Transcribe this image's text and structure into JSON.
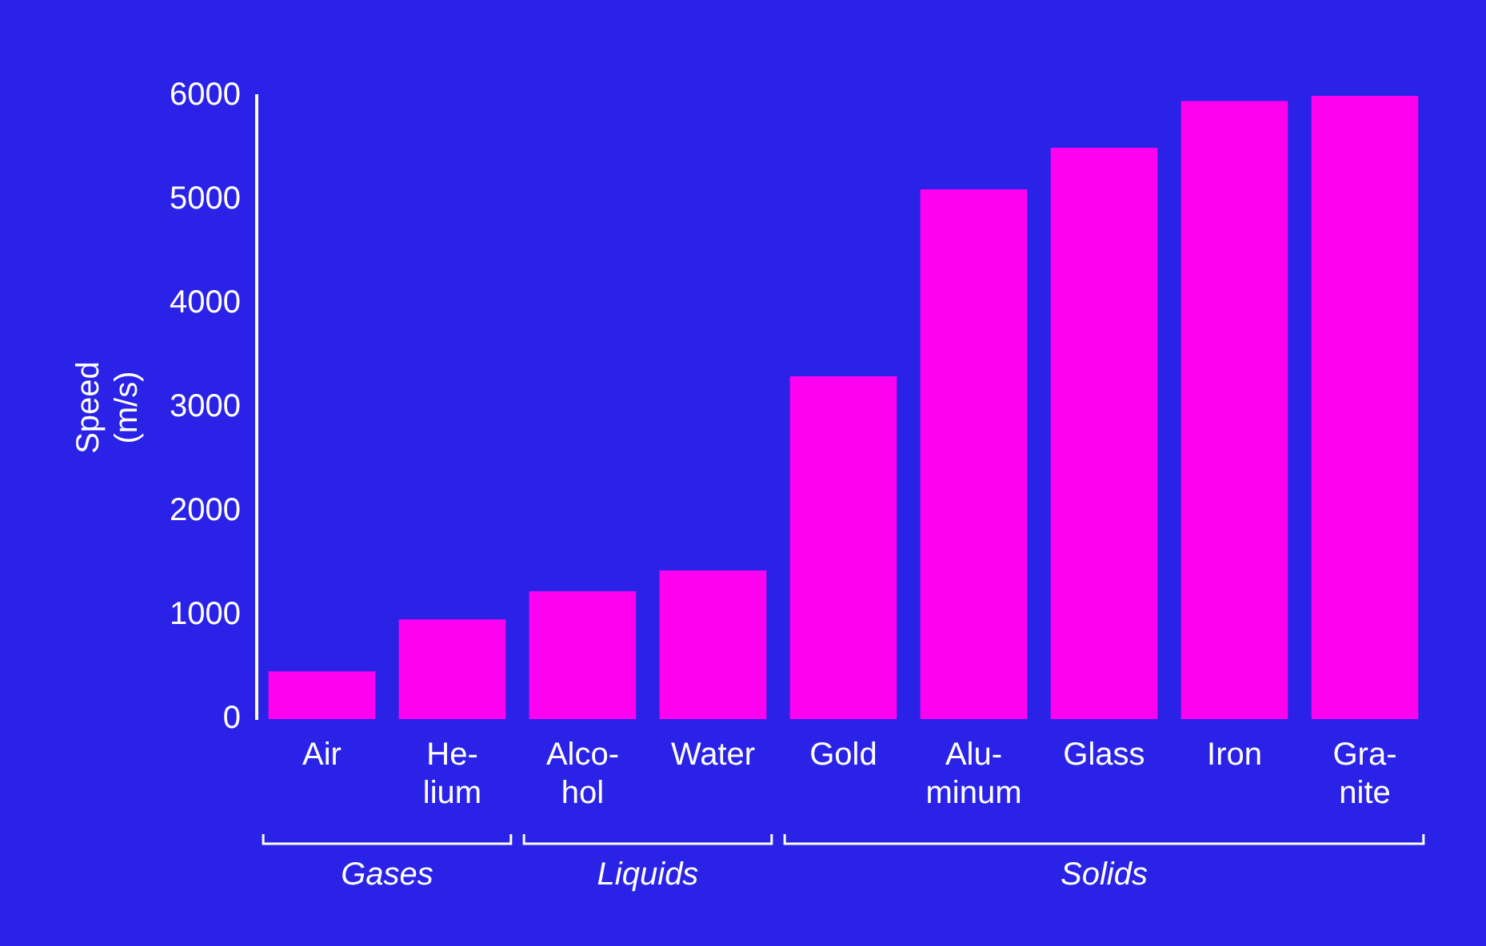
{
  "chart_data": {
    "type": "bar",
    "ylabel": "Speed\n(m/s)",
    "categories": [
      "Air",
      "He-\nlium",
      "Alco-\nhol",
      "Water",
      "Gold",
      "Alu-\nminum",
      "Glass",
      "Iron",
      "Gra-\nnite"
    ],
    "values": [
      460,
      960,
      1230,
      1430,
      3300,
      5100,
      5500,
      5950,
      6000
    ],
    "color": "#ff00f0",
    "ylim": [
      0,
      6000
    ],
    "yticks": [
      0,
      1000,
      2000,
      3000,
      4000,
      5000,
      6000
    ],
    "grid": false,
    "legend": false,
    "annotations": [
      "Gases",
      "Liquids",
      "Solids"
    ]
  }
}
